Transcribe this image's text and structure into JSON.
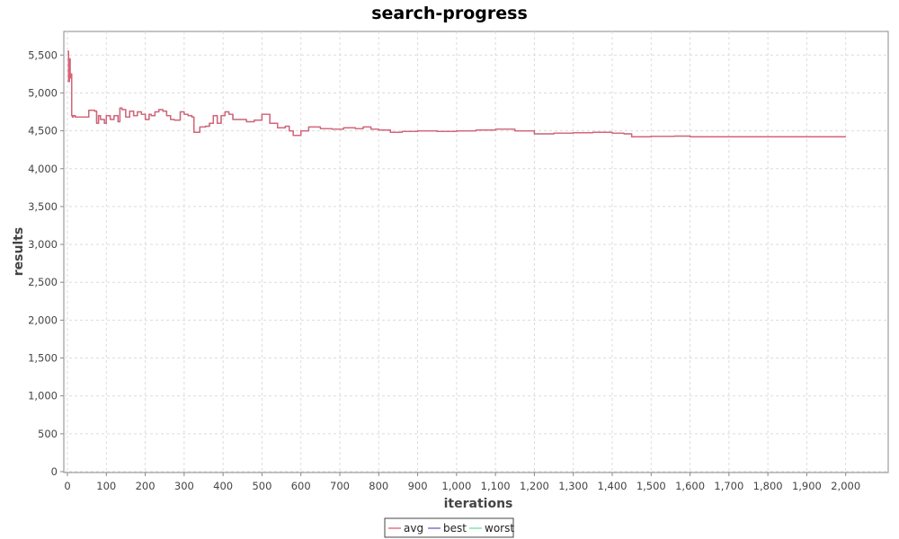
{
  "chart_data": {
    "type": "line",
    "title": "search-progress",
    "xlabel": "iterations",
    "ylabel": "results",
    "xlim": [
      0,
      2100
    ],
    "ylim": [
      0,
      5800
    ],
    "x_ticks": [
      0,
      100,
      200,
      300,
      400,
      500,
      600,
      700,
      800,
      900,
      1000,
      1100,
      1200,
      1300,
      1400,
      1500,
      1600,
      1700,
      1800,
      1900,
      2000
    ],
    "x_tick_labels": [
      "0",
      "100",
      "200",
      "300",
      "400",
      "500",
      "600",
      "700",
      "800",
      "900",
      "1,000",
      "1,100",
      "1,200",
      "1,300",
      "1,400",
      "1,500",
      "1,600",
      "1,700",
      "1,800",
      "1,900",
      "2,000"
    ],
    "y_ticks": [
      0,
      500,
      1000,
      1500,
      2000,
      2500,
      3000,
      3500,
      4000,
      4500,
      5000,
      5500
    ],
    "y_tick_labels": [
      "0",
      "500",
      "1,000",
      "1,500",
      "2,000",
      "2,500",
      "3,000",
      "3,500",
      "4,000",
      "4,500",
      "5,000",
      "5,500"
    ],
    "grid": true,
    "legend_position": "bottom-center",
    "series": [
      {
        "name": "avg",
        "color": "#e06070",
        "x": [
          0,
          3,
          5,
          7,
          9,
          11,
          13,
          15,
          20,
          40,
          55,
          70,
          75,
          80,
          85,
          95,
          100,
          110,
          120,
          130,
          135,
          140,
          150,
          160,
          170,
          180,
          190,
          200,
          210,
          215,
          225,
          235,
          245,
          255,
          265,
          275,
          290,
          300,
          310,
          320,
          325,
          340,
          355,
          365,
          375,
          385,
          395,
          405,
          415,
          425,
          440,
          460,
          480,
          500,
          520,
          540,
          560,
          570,
          580,
          600,
          620,
          650,
          680,
          710,
          740,
          760,
          780,
          800,
          830,
          860,
          900,
          950,
          1000,
          1050,
          1100,
          1150,
          1200,
          1250,
          1300,
          1350,
          1400,
          1430,
          1450,
          1500,
          1560,
          1600,
          1700,
          1800,
          1900,
          2000
        ],
        "y": [
          5550,
          5150,
          5450,
          5200,
          5250,
          4700,
          4680,
          4700,
          4680,
          4680,
          4770,
          4760,
          4600,
          4700,
          4650,
          4600,
          4700,
          4650,
          4700,
          4620,
          4800,
          4780,
          4680,
          4760,
          4700,
          4750,
          4720,
          4650,
          4720,
          4700,
          4750,
          4780,
          4760,
          4700,
          4650,
          4640,
          4750,
          4720,
          4700,
          4680,
          4480,
          4550,
          4560,
          4600,
          4700,
          4600,
          4700,
          4750,
          4720,
          4650,
          4650,
          4620,
          4640,
          4720,
          4600,
          4540,
          4560,
          4500,
          4440,
          4500,
          4550,
          4530,
          4520,
          4540,
          4530,
          4550,
          4520,
          4510,
          4480,
          4490,
          4500,
          4490,
          4500,
          4510,
          4520,
          4500,
          4460,
          4470,
          4475,
          4480,
          4470,
          4460,
          4420,
          4425,
          4430,
          4420,
          4420,
          4420,
          4420,
          4420
        ]
      },
      {
        "name": "best",
        "color": "#6464c8",
        "x": [
          0,
          3,
          5,
          7,
          9,
          11,
          13,
          15,
          20,
          40,
          55,
          70,
          75,
          80,
          85,
          95,
          100,
          110,
          120,
          130,
          135,
          140,
          150,
          160,
          170,
          180,
          190,
          200,
          210,
          215,
          225,
          235,
          245,
          255,
          265,
          275,
          290,
          300,
          310,
          320,
          325,
          340,
          355,
          365,
          375,
          385,
          395,
          405,
          415,
          425,
          440,
          460,
          480,
          500,
          520,
          540,
          560,
          570,
          580,
          600,
          620,
          650,
          680,
          710,
          740,
          760,
          780,
          800,
          830,
          860,
          900,
          950,
          1000,
          1050,
          1100,
          1150,
          1200,
          1250,
          1300,
          1350,
          1400,
          1430,
          1450,
          1500,
          1560,
          1600,
          1700,
          1800,
          1900,
          2000
        ],
        "y": [
          5550,
          5150,
          5450,
          5200,
          5250,
          4700,
          4680,
          4700,
          4680,
          4680,
          4770,
          4760,
          4600,
          4700,
          4650,
          4600,
          4700,
          4650,
          4700,
          4620,
          4800,
          4780,
          4680,
          4760,
          4700,
          4750,
          4720,
          4650,
          4720,
          4700,
          4750,
          4780,
          4760,
          4700,
          4650,
          4640,
          4750,
          4720,
          4700,
          4680,
          4480,
          4550,
          4560,
          4600,
          4700,
          4600,
          4700,
          4750,
          4720,
          4650,
          4650,
          4620,
          4640,
          4720,
          4600,
          4540,
          4560,
          4500,
          4440,
          4500,
          4550,
          4530,
          4520,
          4540,
          4530,
          4550,
          4520,
          4510,
          4480,
          4490,
          4500,
          4490,
          4500,
          4510,
          4520,
          4500,
          4460,
          4470,
          4475,
          4480,
          4470,
          4460,
          4420,
          4425,
          4430,
          4420,
          4420,
          4420,
          4420,
          4420
        ]
      },
      {
        "name": "worst",
        "color": "#6ee0a0",
        "x": [
          0,
          3,
          5,
          7,
          9,
          11,
          13,
          15,
          20,
          40,
          55,
          70,
          75,
          80,
          85,
          95,
          100,
          110,
          120,
          130,
          135,
          140,
          150,
          160,
          170,
          180,
          190,
          200,
          210,
          215,
          225,
          235,
          245,
          255,
          265,
          275,
          290,
          300,
          310,
          320,
          325,
          340,
          355,
          365,
          375,
          385,
          395,
          405,
          415,
          425,
          440,
          460,
          480,
          500,
          520,
          540,
          560,
          570,
          580,
          600,
          620,
          650,
          680,
          710,
          740,
          760,
          780,
          800,
          830,
          860,
          900,
          950,
          1000,
          1050,
          1100,
          1150,
          1200,
          1250,
          1300,
          1350,
          1400,
          1430,
          1450,
          1500,
          1560,
          1600,
          1700,
          1800,
          1900,
          2000
        ],
        "y": [
          5550,
          5150,
          5450,
          5200,
          5250,
          4700,
          4680,
          4700,
          4680,
          4680,
          4770,
          4760,
          4600,
          4700,
          4650,
          4600,
          4700,
          4650,
          4700,
          4620,
          4800,
          4780,
          4680,
          4760,
          4700,
          4750,
          4720,
          4650,
          4720,
          4700,
          4750,
          4780,
          4760,
          4700,
          4650,
          4640,
          4750,
          4720,
          4700,
          4680,
          4480,
          4550,
          4560,
          4600,
          4700,
          4600,
          4700,
          4750,
          4720,
          4650,
          4650,
          4620,
          4640,
          4720,
          4600,
          4540,
          4560,
          4500,
          4440,
          4500,
          4550,
          4530,
          4520,
          4540,
          4530,
          4550,
          4520,
          4510,
          4480,
          4490,
          4500,
          4490,
          4500,
          4510,
          4520,
          4500,
          4460,
          4470,
          4475,
          4480,
          4470,
          4460,
          4420,
          4425,
          4430,
          4420,
          4420,
          4420,
          4420,
          4420
        ]
      }
    ]
  }
}
